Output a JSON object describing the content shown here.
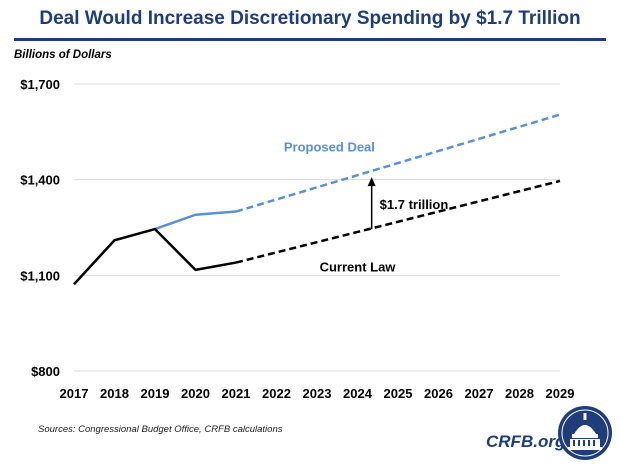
{
  "title": "Deal Would Increase Discretionary Spending by $1.7 Trillion",
  "source": "Sources: Congressional Budget Office, CRFB calculations",
  "brand": "CRFB.org",
  "colors": {
    "title": "#1f3d7a",
    "proposed": "#5b8fd6",
    "current": "#000000",
    "grid": "#d9d9d9"
  },
  "chart_data": {
    "type": "line",
    "title": "Deal Would Increase Discretionary Spending by $1.7 Trillion",
    "ylabel": "Billions of Dollars",
    "xlabel": "",
    "x": [
      2017,
      2018,
      2019,
      2020,
      2021,
      2022,
      2023,
      2024,
      2025,
      2026,
      2027,
      2028,
      2029
    ],
    "ylim": [
      800,
      1700
    ],
    "yticks": [
      800,
      1100,
      1400,
      1700
    ],
    "ytick_labels": [
      "$800",
      "$1,100",
      "$1,400",
      "$1,700"
    ],
    "grid": "horizontal",
    "series": [
      {
        "name": "Proposed Deal",
        "color": "#5b8fd6",
        "solid": {
          "x": [
            2019,
            2020,
            2021
          ],
          "y": [
            1245,
            1290,
            1300
          ]
        },
        "dashed": {
          "x": [
            2021,
            2022,
            2023,
            2024,
            2025,
            2026,
            2027,
            2028,
            2029
          ],
          "y": [
            1300,
            1338,
            1376,
            1414,
            1452,
            1490,
            1528,
            1566,
            1604
          ]
        }
      },
      {
        "name": "Current Law",
        "color": "#000000",
        "solid": {
          "x": [
            2017,
            2018,
            2019,
            2020,
            2021
          ],
          "y": [
            1072,
            1210,
            1245,
            1117,
            1140
          ]
        },
        "dashed": {
          "x": [
            2021,
            2022,
            2023,
            2024,
            2025,
            2026,
            2027,
            2028,
            2029
          ],
          "y": [
            1140,
            1172,
            1204,
            1236,
            1268,
            1300,
            1332,
            1364,
            1396
          ]
        }
      }
    ],
    "annotation": {
      "text": "$1.7 trillion",
      "x": 2024.35,
      "y_from": 1238,
      "y_to": 1408
    }
  }
}
